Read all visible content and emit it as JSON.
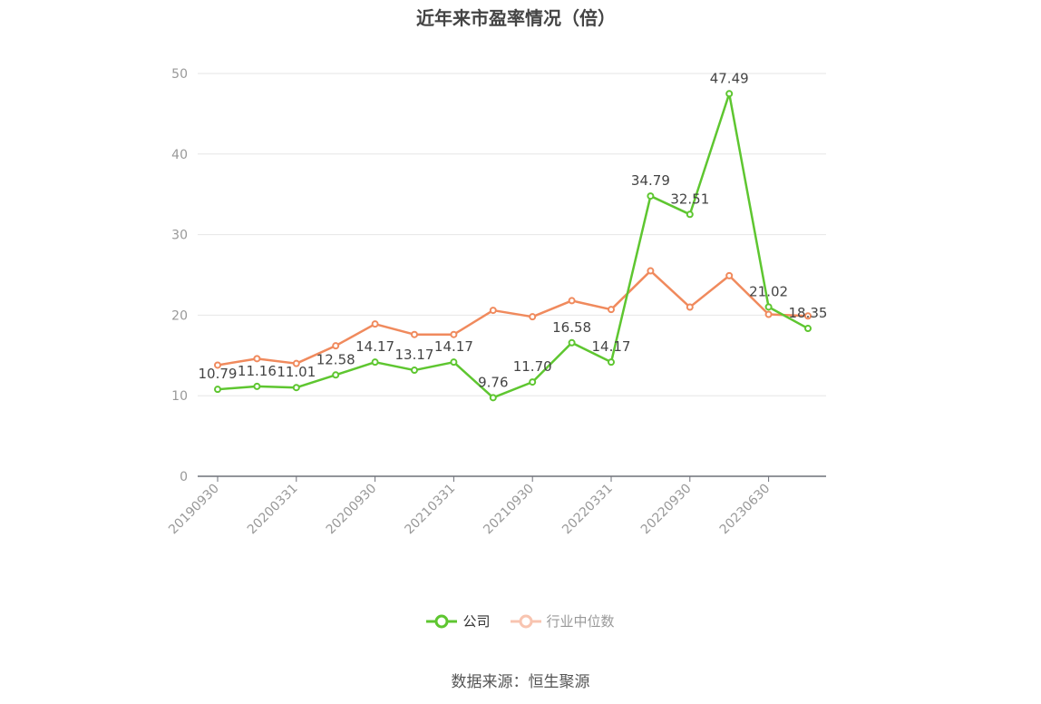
{
  "title": "近年来市盈率情况（倍）",
  "source": "数据来源：恒生聚源",
  "chart_data": {
    "type": "line",
    "title": "近年来市盈率情况（倍）",
    "ylim": [
      0,
      50
    ],
    "yticks": [
      0,
      10,
      20,
      30,
      40,
      50
    ],
    "grid": true,
    "legend_position": "bottom",
    "x_tick_labels": [
      "20190930",
      "20200331",
      "20200930",
      "20210331",
      "20210930",
      "20220331",
      "20220930",
      "20230630"
    ],
    "x_count": 16,
    "series": [
      {
        "name": "公司",
        "color": "#5ec630",
        "values": [
          10.79,
          11.16,
          11.01,
          12.58,
          14.17,
          13.17,
          14.17,
          9.76,
          11.7,
          16.58,
          14.17,
          34.79,
          32.51,
          47.49,
          21.02,
          18.35
        ],
        "labels": [
          "10.79",
          "11.16",
          "11.01",
          "12.58",
          "14.17",
          "13.17",
          "14.17",
          "9.76",
          "11.70",
          "16.58",
          "14.17",
          "34.79",
          "32.51",
          "47.49",
          "21.02",
          "18.35"
        ]
      },
      {
        "name": "行业中位数",
        "color": "#f08a5d",
        "values": [
          13.8,
          14.6,
          14.0,
          16.2,
          18.9,
          17.6,
          17.6,
          20.6,
          19.8,
          21.8,
          20.7,
          25.5,
          21.0,
          24.9,
          20.1,
          19.9
        ]
      }
    ]
  }
}
